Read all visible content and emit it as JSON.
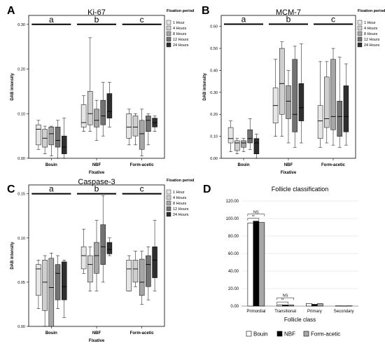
{
  "panel_labels": [
    "A",
    "B",
    "C",
    "D"
  ],
  "colors": {
    "fixation": [
      "#e6e6e6",
      "#cfcfcf",
      "#a6a6a6",
      "#737373",
      "#2e2e2e"
    ],
    "follicle": [
      "#ffffff",
      "#000000",
      "#a8a8a8"
    ]
  },
  "chart_data": [
    {
      "type": "box",
      "panel": "A",
      "title": "Ki-67",
      "xlabel": "Fixative",
      "ylabel": "DAB intensity",
      "categories": [
        "Bouin",
        "NBF",
        "Form-acetic"
      ],
      "ylim": [
        0,
        0.32
      ],
      "yticks": [
        "0.00",
        "0.10",
        "0.20",
        "0.30"
      ],
      "ytick_values": [
        0,
        0.1,
        0.2,
        0.3
      ],
      "legend_title": "Fixation period",
      "series_names": [
        "1 Hour",
        "4 Hours",
        "8 Hours",
        "12 Hours",
        "24 Hours"
      ],
      "group_letters": [
        "a",
        "b",
        "c"
      ],
      "group_line_y": 0.3,
      "boxes": [
        [
          [
            0.02,
            0.03,
            0.065,
            0.075,
            0.085
          ],
          [
            0.01,
            0.025,
            0.045,
            0.065,
            0.072
          ],
          [
            0.005,
            0.03,
            0.055,
            0.07,
            0.072
          ],
          [
            0.0,
            0.025,
            0.04,
            0.07,
            0.085
          ],
          [
            0.0,
            0.01,
            0.025,
            0.05,
            0.09
          ]
        ],
        [
          [
            0.06,
            0.07,
            0.08,
            0.12,
            0.14
          ],
          [
            0.06,
            0.075,
            0.1,
            0.15,
            0.27
          ],
          [
            0.04,
            0.07,
            0.085,
            0.11,
            0.13
          ],
          [
            0.05,
            0.075,
            0.095,
            0.13,
            0.17
          ],
          [
            0.07,
            0.09,
            0.105,
            0.145,
            0.17
          ]
        ],
        [
          [
            0.03,
            0.045,
            0.07,
            0.1,
            0.11
          ],
          [
            0.03,
            0.05,
            0.07,
            0.095,
            0.1
          ],
          [
            0.005,
            0.02,
            0.055,
            0.085,
            0.11
          ],
          [
            0.03,
            0.06,
            0.085,
            0.095,
            0.1
          ],
          [
            0.06,
            0.07,
            0.08,
            0.09,
            0.095
          ]
        ]
      ]
    },
    {
      "type": "box",
      "panel": "B",
      "title": "MCM-7",
      "xlabel": "Fixative",
      "ylabel": "DAB intensity",
      "categories": [
        "Bouin",
        "NBF",
        "Form-acetic"
      ],
      "ylim": [
        0,
        0.65
      ],
      "yticks": [
        "0.00",
        "0.10",
        "0.20",
        "0.30",
        "0.40",
        "0.50",
        "0.60"
      ],
      "ytick_values": [
        0,
        0.1,
        0.2,
        0.3,
        0.4,
        0.5,
        0.6
      ],
      "legend_title": "Fixation period",
      "series_names": [
        "1 Hour",
        "4 Hours",
        "8 Hours",
        "12 Hours",
        "24 Hours"
      ],
      "group_letters": [
        "a",
        "b",
        "c"
      ],
      "group_line_y": 0.61,
      "boxes": [
        [
          [
            0.03,
            0.07,
            0.09,
            0.14,
            0.17
          ],
          [
            0.02,
            0.035,
            0.07,
            0.08,
            0.09
          ],
          [
            0.03,
            0.05,
            0.07,
            0.08,
            0.09
          ],
          [
            0.04,
            0.07,
            0.09,
            0.13,
            0.18
          ],
          [
            0.0,
            0.02,
            0.07,
            0.09,
            0.11
          ]
        ],
        [
          [
            0.1,
            0.16,
            0.24,
            0.32,
            0.45
          ],
          [
            0.1,
            0.2,
            0.34,
            0.5,
            0.53
          ],
          [
            0.07,
            0.18,
            0.26,
            0.33,
            0.4
          ],
          [
            0.05,
            0.12,
            0.2,
            0.45,
            0.51
          ],
          [
            0.07,
            0.17,
            0.23,
            0.34,
            0.52
          ]
        ],
        [
          [
            0.05,
            0.09,
            0.17,
            0.24,
            0.44
          ],
          [
            0.07,
            0.14,
            0.18,
            0.37,
            0.44
          ],
          [
            0.06,
            0.13,
            0.19,
            0.45,
            0.5
          ],
          [
            0.05,
            0.1,
            0.19,
            0.26,
            0.46
          ],
          [
            0.06,
            0.12,
            0.19,
            0.33,
            0.43
          ]
        ]
      ]
    },
    {
      "type": "box",
      "panel": "C",
      "title": "Caspase-3",
      "xlabel": "Fixative",
      "ylabel": "DAB intensity",
      "categories": [
        "Bouin",
        "NBF",
        "Form-acetic"
      ],
      "ylim": [
        0,
        0.16
      ],
      "yticks": [
        "0.00",
        "0.05",
        "0.10",
        "0.15"
      ],
      "ytick_values": [
        0,
        0.05,
        0.1,
        0.15
      ],
      "legend_title": "Fixation period",
      "series_names": [
        "1 Hour",
        "4 Hours",
        "8 Hours",
        "12 Hours",
        "24 Hours"
      ],
      "group_letters": [
        "a",
        "b",
        "c"
      ],
      "group_line_y": 0.15,
      "boxes": [
        [
          [
            0.02,
            0.035,
            0.065,
            0.07,
            0.075
          ],
          [
            0.0,
            0.018,
            0.05,
            0.075,
            0.08
          ],
          [
            0.0,
            0.0,
            0.044,
            0.077,
            0.083
          ],
          [
            0.02,
            0.03,
            0.06,
            0.07,
            0.08
          ],
          [
            0.01,
            0.03,
            0.045,
            0.073,
            0.075
          ]
        ],
        [
          [
            0.06,
            0.065,
            0.08,
            0.09,
            0.11
          ],
          [
            0.04,
            0.05,
            0.07,
            0.08,
            0.09
          ],
          [
            0.04,
            0.06,
            0.08,
            0.095,
            0.12
          ],
          [
            0.05,
            0.07,
            0.09,
            0.115,
            0.148
          ],
          [
            0.08,
            0.082,
            0.087,
            0.095,
            0.1
          ]
        ],
        [
          [
            0.04,
            0.04,
            0.065,
            0.075,
            0.08
          ],
          [
            0.045,
            0.05,
            0.065,
            0.075,
            0.085
          ],
          [
            0.025,
            0.035,
            0.05,
            0.076,
            0.085
          ],
          [
            0.03,
            0.045,
            0.07,
            0.08,
            0.09
          ],
          [
            0.04,
            0.055,
            0.075,
            0.09,
            0.12
          ]
        ]
      ]
    },
    {
      "type": "bar",
      "panel": "D",
      "title": "Follicle classification",
      "xlabel": "Follicle class",
      "ylabel": "",
      "categories": [
        "Primordial",
        "Transitional",
        "Primary",
        "Secondary"
      ],
      "ylim": [
        0,
        120
      ],
      "yticks": [
        "0.00",
        "20.00",
        "40.00",
        "60.00",
        "80.00",
        "100.00",
        "120.00"
      ],
      "ytick_values": [
        0,
        20,
        40,
        60,
        80,
        100,
        120
      ],
      "series": [
        {
          "name": "Bouin",
          "values": [
            95,
            1.5,
            3.0,
            0.3
          ]
        },
        {
          "name": "NBF",
          "values": [
            97,
            1.2,
            2.0,
            0.2
          ]
        },
        {
          "name": "Form-acetic",
          "values": [
            95.5,
            1.3,
            2.8,
            0.3
          ]
        }
      ],
      "significance": [
        {
          "category": "Primordial",
          "upper": "NS",
          "lower": "**"
        },
        {
          "category": "Transitional",
          "upper": "NS",
          "lower": "**"
        }
      ]
    }
  ]
}
